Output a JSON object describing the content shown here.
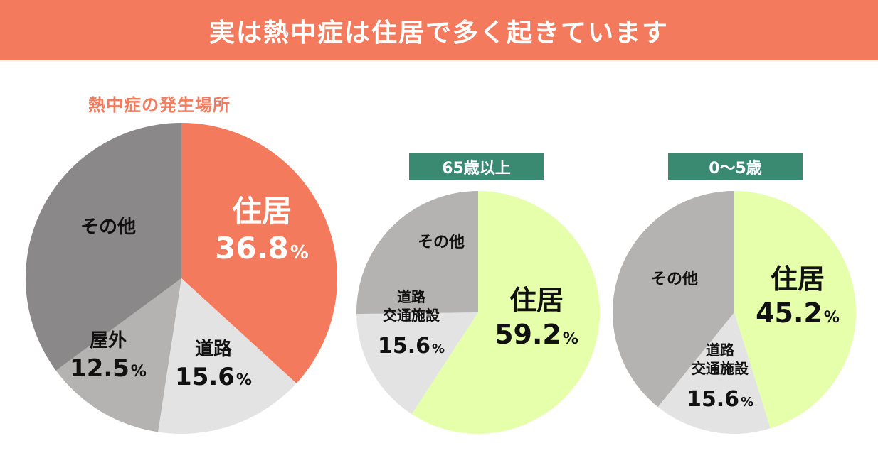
{
  "header": {
    "title": "実は熱中症は住居で多く起きています"
  },
  "colors": {
    "header_bg": "#f47a5d",
    "accent": "#f47a5d",
    "badge_bg": "#3a8a72",
    "home_main": "#f47a5d",
    "home_sub": "#e5ffaa",
    "other": "#8a8888",
    "other_sub": "#b5b3b1",
    "outdoor": "#b5b3b1",
    "road": "#e4e3e3"
  },
  "chart_data": [
    {
      "type": "pie",
      "title": "熱中症の発生場所",
      "slices": [
        {
          "label": "住居",
          "value": 36.8,
          "value_text": "36.8",
          "unit": "%",
          "color": "#f47a5d"
        },
        {
          "label": "道路",
          "value": 15.6,
          "value_text": "15.6",
          "unit": "%",
          "color": "#e4e3e3"
        },
        {
          "label": "屋外",
          "value": 12.5,
          "value_text": "12.5",
          "unit": "%",
          "color": "#b5b3b1"
        },
        {
          "label": "その他",
          "value": 35.1,
          "value_text": "",
          "unit": "",
          "color": "#8a8888"
        }
      ]
    },
    {
      "type": "pie",
      "title": "65歳以上",
      "slices": [
        {
          "label": "住居",
          "value": 59.2,
          "value_text": "59.2",
          "unit": "%",
          "color": "#e5ffaa"
        },
        {
          "label": "道路\n交通施設",
          "value": 15.6,
          "value_text": "15.6",
          "unit": "%",
          "color": "#e4e3e3"
        },
        {
          "label": "その他",
          "value": 25.2,
          "value_text": "",
          "unit": "",
          "color": "#b5b3b1"
        }
      ]
    },
    {
      "type": "pie",
      "title": "0〜5歳",
      "slices": [
        {
          "label": "住居",
          "value": 45.2,
          "value_text": "45.2",
          "unit": "%",
          "color": "#e5ffaa"
        },
        {
          "label": "道路\n交通施設",
          "value": 15.6,
          "value_text": "15.6",
          "unit": "%",
          "color": "#e4e3e3"
        },
        {
          "label": "その他",
          "value": 39.2,
          "value_text": "",
          "unit": "",
          "color": "#b5b3b1"
        }
      ]
    }
  ]
}
